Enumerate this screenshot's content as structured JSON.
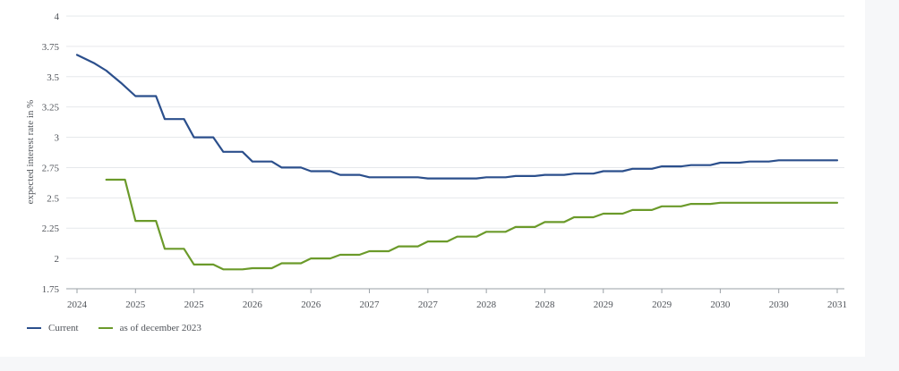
{
  "chart_data": {
    "type": "line",
    "title": "",
    "xlabel": "",
    "ylabel": "expected interest rate in %",
    "ylim": [
      1.75,
      4
    ],
    "yticks": [
      "1.75",
      "2",
      "2.25",
      "2.5",
      "2.75",
      "3",
      "3.25",
      "3.5",
      "3.75",
      "4"
    ],
    "xticks": [
      "2024",
      "2025",
      "2025",
      "2026",
      "2026",
      "2027",
      "2027",
      "2028",
      "2028",
      "2029",
      "2029",
      "2030",
      "2030",
      "2031"
    ],
    "grid": true,
    "legend_position": "bottom-left",
    "series": [
      {
        "name": "Current",
        "color": "#2b4f8c",
        "points": [
          [
            0.0,
            3.68
          ],
          [
            0.3,
            3.61
          ],
          [
            0.5,
            3.55
          ],
          [
            0.75,
            3.45
          ],
          [
            1.0,
            3.34
          ],
          [
            1.35,
            3.34
          ],
          [
            1.5,
            3.15
          ],
          [
            1.83,
            3.15
          ],
          [
            2.0,
            3.0
          ],
          [
            2.33,
            3.0
          ],
          [
            2.5,
            2.88
          ],
          [
            2.83,
            2.88
          ],
          [
            3.0,
            2.8
          ],
          [
            3.33,
            2.8
          ],
          [
            3.5,
            2.75
          ],
          [
            3.83,
            2.75
          ],
          [
            4.0,
            2.72
          ],
          [
            4.33,
            2.72
          ],
          [
            4.5,
            2.69
          ],
          [
            4.83,
            2.69
          ],
          [
            5.0,
            2.67
          ],
          [
            5.5,
            2.67
          ],
          [
            5.83,
            2.67
          ],
          [
            6.0,
            2.66
          ],
          [
            6.5,
            2.66
          ],
          [
            6.83,
            2.66
          ],
          [
            7.0,
            2.67
          ],
          [
            7.33,
            2.67
          ],
          [
            7.5,
            2.68
          ],
          [
            7.83,
            2.68
          ],
          [
            8.0,
            2.69
          ],
          [
            8.33,
            2.69
          ],
          [
            8.5,
            2.7
          ],
          [
            8.83,
            2.7
          ],
          [
            9.0,
            2.72
          ],
          [
            9.33,
            2.72
          ],
          [
            9.5,
            2.74
          ],
          [
            9.83,
            2.74
          ],
          [
            10.0,
            2.76
          ],
          [
            10.33,
            2.76
          ],
          [
            10.5,
            2.77
          ],
          [
            10.83,
            2.77
          ],
          [
            11.0,
            2.79
          ],
          [
            11.33,
            2.79
          ],
          [
            11.5,
            2.8
          ],
          [
            11.83,
            2.8
          ],
          [
            12.0,
            2.81
          ],
          [
            13.0,
            2.81
          ]
        ]
      },
      {
        "name": "as of december 2023",
        "color": "#6b9a2a",
        "points": [
          [
            0.5,
            2.65
          ],
          [
            0.82,
            2.65
          ],
          [
            1.0,
            2.31
          ],
          [
            1.35,
            2.31
          ],
          [
            1.5,
            2.08
          ],
          [
            1.83,
            2.08
          ],
          [
            2.0,
            1.95
          ],
          [
            2.33,
            1.95
          ],
          [
            2.5,
            1.91
          ],
          [
            2.83,
            1.91
          ],
          [
            3.0,
            1.92
          ],
          [
            3.33,
            1.92
          ],
          [
            3.5,
            1.96
          ],
          [
            3.83,
            1.96
          ],
          [
            4.0,
            2.0
          ],
          [
            4.33,
            2.0
          ],
          [
            4.5,
            2.03
          ],
          [
            4.83,
            2.03
          ],
          [
            5.0,
            2.06
          ],
          [
            5.33,
            2.06
          ],
          [
            5.5,
            2.1
          ],
          [
            5.83,
            2.1
          ],
          [
            6.0,
            2.14
          ],
          [
            6.33,
            2.14
          ],
          [
            6.5,
            2.18
          ],
          [
            6.83,
            2.18
          ],
          [
            7.0,
            2.22
          ],
          [
            7.33,
            2.22
          ],
          [
            7.5,
            2.26
          ],
          [
            7.83,
            2.26
          ],
          [
            8.0,
            2.3
          ],
          [
            8.33,
            2.3
          ],
          [
            8.5,
            2.34
          ],
          [
            8.83,
            2.34
          ],
          [
            9.0,
            2.37
          ],
          [
            9.33,
            2.37
          ],
          [
            9.5,
            2.4
          ],
          [
            9.83,
            2.4
          ],
          [
            10.0,
            2.43
          ],
          [
            10.33,
            2.43
          ],
          [
            10.5,
            2.45
          ],
          [
            10.83,
            2.45
          ],
          [
            11.0,
            2.46
          ],
          [
            13.0,
            2.46
          ]
        ]
      }
    ]
  }
}
